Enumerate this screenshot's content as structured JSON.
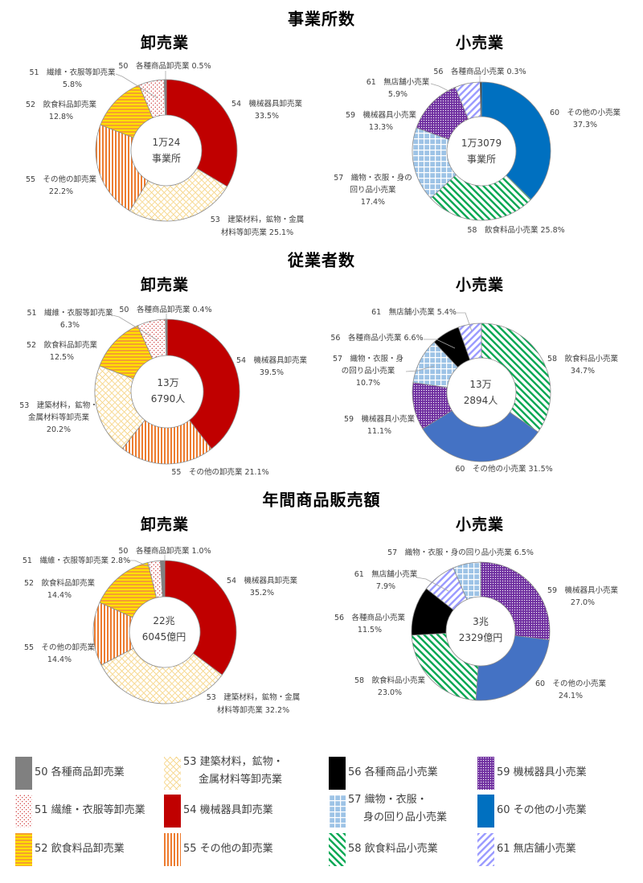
{
  "sections": [
    {
      "title": "事業所数"
    },
    {
      "title": "従業者数"
    },
    {
      "title": "年間商品販売額"
    }
  ],
  "subtitles": {
    "wholesale": "卸売業",
    "retail": "小売業"
  },
  "series_styles": {
    "50": {
      "pattern": "solid",
      "fg": "#808080"
    },
    "51": {
      "pattern": "dots",
      "fg": "#C00000",
      "bg": "#FFFFFF"
    },
    "52": {
      "pattern": "hstripes",
      "fg": "#F5A030",
      "bg": "#FFE000"
    },
    "53": {
      "pattern": "crosshatch",
      "fg": "#F2C14E",
      "bg": "#FFFFFF"
    },
    "54": {
      "pattern": "solid",
      "fg": "#C00000"
    },
    "55": {
      "pattern": "vstripes",
      "fg": "#ED7D31",
      "bg": "#FFFFFF"
    },
    "56": {
      "pattern": "solid",
      "fg": "#000000"
    },
    "57": {
      "pattern": "grid",
      "fg": "#FFFFFF",
      "bg": "#9DC3E6"
    },
    "58": {
      "pattern": "dstripes-down",
      "fg": "#00A651",
      "bg": "#FFFFFF"
    },
    "59": {
      "pattern": "dots-dense",
      "fg": "#FFFFFF",
      "bg": "#7030A0"
    },
    "60": {
      "pattern": "solid",
      "fg": "#0070C0"
    },
    "61": {
      "pattern": "dstripes-up",
      "fg": "#9999FF",
      "bg": "#FFFFFF"
    }
  },
  "chart_data": [
    {
      "type": "pie",
      "subtype": "donut",
      "section": "事業所数",
      "title": "卸売業",
      "center_text": [
        "1万24",
        "事業所"
      ],
      "codes": [
        "54",
        "53",
        "55",
        "52",
        "51",
        "50"
      ],
      "categories": [
        "54 機械器具卸売業",
        "53 建築材料，鉱物・金属材料等卸売業",
        "55 その他の卸売業",
        "52 飲食料品卸売業",
        "51 繊維・衣服等卸売業",
        "50 各種商品卸売業"
      ],
      "values": [
        33.5,
        25.1,
        22.2,
        12.8,
        5.8,
        0.5
      ],
      "unit": "%",
      "labels": {
        "50": {
          "lines": [
            "50　各種商品卸売業 0.5%"
          ]
        },
        "51": {
          "lines": [
            "51　繊維・衣服等卸売業",
            "5.8%"
          ]
        },
        "52": {
          "lines": [
            "52　飲食料品卸売業",
            "12.8%"
          ]
        },
        "54": {
          "lines": [
            "54　機械器具卸売業",
            "33.5%"
          ]
        },
        "55": {
          "lines": [
            "55　その他の卸売業",
            "22.2%"
          ]
        },
        "53": {
          "lines": [
            "53　建築材料，鉱物・金属",
            "材料等卸売業 25.1%"
          ]
        }
      }
    },
    {
      "type": "pie",
      "subtype": "donut",
      "section": "事業所数",
      "title": "小売業",
      "center_text": [
        "1万3079",
        "事業所"
      ],
      "codes": [
        "60",
        "58",
        "57",
        "59",
        "61",
        "56"
      ],
      "categories": [
        "60 その他の小売業",
        "58 飲食料品小売業",
        "57 織物・衣服・身の回り品小売業",
        "59 機械器具小売業",
        "61 無店舗小売業",
        "56 各種商品小売業"
      ],
      "values": [
        37.3,
        25.8,
        17.4,
        13.3,
        5.9,
        0.3
      ],
      "unit": "%",
      "labels": {
        "56": {
          "lines": [
            "56　各種商品小売業 0.3%"
          ]
        },
        "61": {
          "lines": [
            "61　無店舗小売業",
            "5.9%"
          ]
        },
        "59": {
          "lines": [
            "59　機械器具小売業",
            "13.3%"
          ]
        },
        "60": {
          "lines": [
            "60　その他の小売業",
            "37.3%"
          ]
        },
        "57": {
          "lines": [
            "57　織物・衣服・身の",
            "回り品小売業",
            "17.4%"
          ]
        },
        "58": {
          "lines": [
            "58　飲食料品小売業 25.8%"
          ]
        }
      }
    },
    {
      "type": "pie",
      "subtype": "donut",
      "section": "従業者数",
      "title": "卸売業",
      "center_text": [
        "13万",
        "6790人"
      ],
      "codes": [
        "54",
        "55",
        "53",
        "52",
        "51",
        "50"
      ],
      "categories": [
        "54 機械器具卸売業",
        "55 その他の卸売業",
        "53 建築材料，鉱物・金属材料等卸売業",
        "52 飲食料品卸売業",
        "51 繊維・衣服等卸売業",
        "50 各種商品卸売業"
      ],
      "values": [
        39.5,
        21.1,
        20.2,
        12.5,
        6.3,
        0.4
      ],
      "unit": "%",
      "labels": {
        "50": {
          "lines": [
            "50　各種商品卸売業 0.4%"
          ]
        },
        "51": {
          "lines": [
            "51　繊維・衣服等卸売業",
            "6.3%"
          ]
        },
        "52": {
          "lines": [
            "52　飲食料品卸売業",
            "12.5%"
          ]
        },
        "54": {
          "lines": [
            "54　機械器具卸売業",
            "39.5%"
          ]
        },
        "53": {
          "lines": [
            "53　建築材料，鉱物・",
            "金属材料等卸売業",
            "20.2%"
          ]
        },
        "55": {
          "lines": [
            "55　その他の卸売業 21.1%"
          ]
        }
      }
    },
    {
      "type": "pie",
      "subtype": "donut",
      "section": "従業者数",
      "title": "小売業",
      "center_text": [
        "13万",
        "2894人"
      ],
      "codes": [
        "58",
        "60",
        "59",
        "57",
        "56",
        "61"
      ],
      "categories": [
        "58 飲食料品小売業",
        "60 その他の小売業",
        "59 機械器具小売業",
        "57 織物・衣服・身の回り品小売業",
        "56 各種商品小売業",
        "61 無店舗小売業"
      ],
      "values": [
        34.7,
        31.5,
        11.1,
        10.7,
        6.6,
        5.4
      ],
      "unit": "%",
      "color_overrides": {
        "60": "#4472C4"
      },
      "labels": {
        "61": {
          "lines": [
            "61　無店舗小売業 5.4%"
          ]
        },
        "56": {
          "lines": [
            "56　各種商品小売業 6.6%"
          ]
        },
        "57": {
          "lines": [
            "57　織物・衣服・身",
            "の回り品小売業",
            "10.7%"
          ]
        },
        "58": {
          "lines": [
            "58　飲食料品小売業",
            "34.7%"
          ]
        },
        "59": {
          "lines": [
            "59　機械器具小売業",
            "11.1%"
          ]
        },
        "60": {
          "lines": [
            "60　その他の小売業 31.5%"
          ]
        }
      }
    },
    {
      "type": "pie",
      "subtype": "donut",
      "section": "年間商品販売額",
      "title": "卸売業",
      "center_text": [
        "22兆",
        "6045億円"
      ],
      "codes": [
        "54",
        "53",
        "55",
        "52",
        "51",
        "50"
      ],
      "categories": [
        "54 機械器具卸売業",
        "53 建築材料，鉱物・金属材料等卸売業",
        "55 その他の卸売業",
        "52 飲食料品卸売業",
        "51 繊維・衣服等卸売業",
        "50 各種商品卸売業"
      ],
      "values": [
        35.2,
        32.2,
        14.4,
        14.4,
        2.8,
        1.0
      ],
      "unit": "%",
      "labels": {
        "50": {
          "lines": [
            "50　各種商品卸売業 1.0%"
          ]
        },
        "51": {
          "lines": [
            "51　繊維・衣服等卸売業 2.8%"
          ]
        },
        "52": {
          "lines": [
            "52　飲食料品卸売業",
            "14.4%"
          ]
        },
        "54": {
          "lines": [
            "54　機械器具卸売業",
            "35.2%"
          ]
        },
        "55": {
          "lines": [
            "55　その他の卸売業",
            "14.4%"
          ]
        },
        "53": {
          "lines": [
            "53　建築材料，鉱物・金属",
            "材料等卸売業 32.2%"
          ]
        }
      }
    },
    {
      "type": "pie",
      "subtype": "donut",
      "section": "年間商品販売額",
      "title": "小売業",
      "center_text": [
        "3兆",
        "2329億円"
      ],
      "codes": [
        "59",
        "60",
        "58",
        "56",
        "61",
        "57"
      ],
      "categories": [
        "59 機械器具小売業",
        "60 その他の小売業",
        "58 飲食料品小売業",
        "56 各種商品小売業",
        "61 無店舗小売業",
        "57 織物・衣服・身の回り品小売業"
      ],
      "values": [
        27.0,
        24.1,
        23.0,
        11.5,
        7.9,
        6.5
      ],
      "unit": "%",
      "color_overrides": {
        "60": "#4472C4"
      },
      "labels": {
        "57": {
          "lines": [
            "57　織物・衣服・身の回り品小売業 6.5%"
          ]
        },
        "61": {
          "lines": [
            "61　無店舗小売業",
            "7.9%"
          ]
        },
        "59": {
          "lines": [
            "59　機械器具小売業",
            "27.0%"
          ]
        },
        "56": {
          "lines": [
            "56　各種商品小売業",
            "11.5%"
          ]
        },
        "58": {
          "lines": [
            "58　飲食料品小売業",
            "23.0%"
          ]
        },
        "60": {
          "lines": [
            "60　その他の小売業",
            "24.1%"
          ]
        }
      }
    }
  ],
  "legend": {
    "items": {
      "50": {
        "lines": [
          "50 各種商品卸売業"
        ]
      },
      "51": {
        "lines": [
          "51 繊維・衣服等卸売業"
        ]
      },
      "52": {
        "lines": [
          "52 飲食料品卸売業"
        ]
      },
      "53": {
        "lines": [
          "53 建築材料，鉱物・",
          "金属材料等卸売業"
        ]
      },
      "54": {
        "lines": [
          "54 機械器具卸売業"
        ]
      },
      "55": {
        "lines": [
          "55 その他の卸売業"
        ]
      },
      "56": {
        "lines": [
          "56 各種商品小売業"
        ]
      },
      "57": {
        "lines": [
          "57 織物・衣服・",
          "身の回り品小売業"
        ]
      },
      "58": {
        "lines": [
          "58 飲食料品小売業"
        ]
      },
      "59": {
        "lines": [
          "59 機械器具小売業"
        ]
      },
      "60": {
        "lines": [
          "60 その他の小売業"
        ]
      },
      "61": {
        "lines": [
          "61 無店舗小売業"
        ]
      }
    }
  }
}
